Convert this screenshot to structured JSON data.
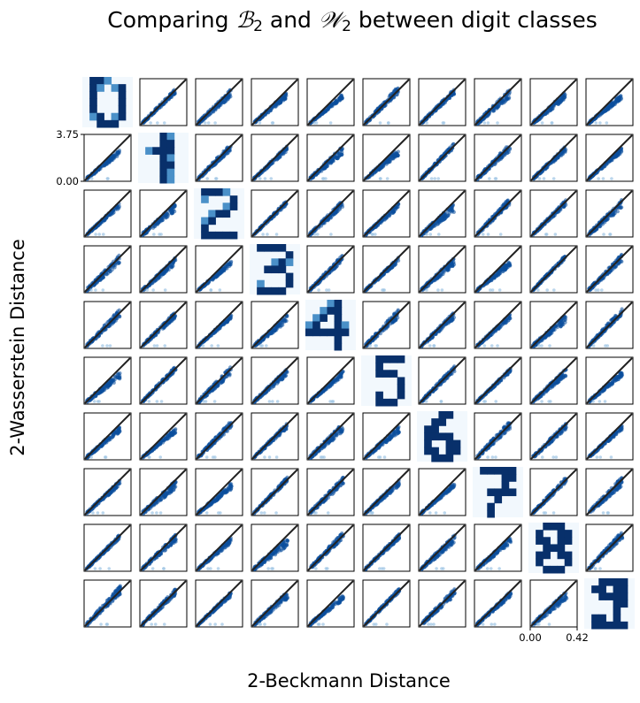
{
  "chart_data": {
    "type": "scatter",
    "title": {
      "prefix": "Comparing ",
      "sym1": "ℬ",
      "sub1": "2",
      "mid": " and ",
      "sym2": "𝒲",
      "sub2": "2",
      "suffix": " between digit classes"
    },
    "xlabel": "2-Beckmann Distance",
    "ylabel": "2-Wasserstein Distance",
    "grid_rows": 10,
    "grid_cols": 10,
    "diagonal": "digit class sample images 0–9",
    "digits": [
      "0",
      "1",
      "2",
      "3",
      "4",
      "5",
      "6",
      "7",
      "8",
      "9"
    ],
    "xlim": [
      0.0,
      0.42
    ],
    "ylim": [
      0.0,
      3.75
    ],
    "x_ticks": [
      "0.00",
      "0.42"
    ],
    "y_ticks": [
      "3.75",
      "0.00"
    ],
    "reference_line": "y = x (scaled)",
    "colors": {
      "points": "#0b4f9c",
      "points_light": "#9ec4e4",
      "line": "#222222",
      "axes": "#000000"
    }
  }
}
